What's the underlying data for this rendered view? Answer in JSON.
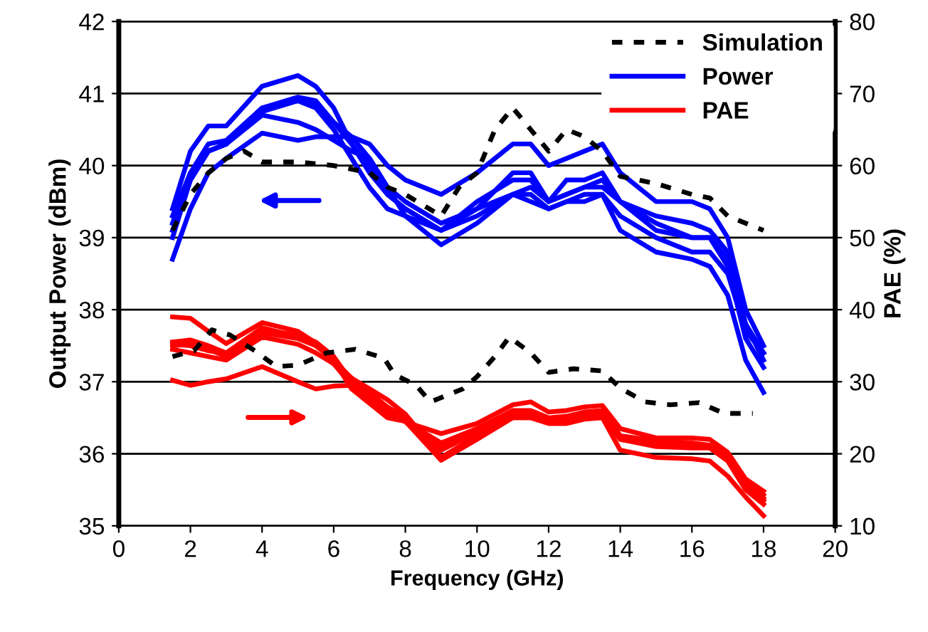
{
  "chart_data": {
    "type": "line",
    "xlabel": "Frequency (GHz)",
    "ylabel": "Output Power (dBm)",
    "y2label": "PAE (%)",
    "x": [
      1.5,
      2,
      2.5,
      3,
      4,
      5,
      5.5,
      6,
      6.5,
      7,
      7.5,
      8,
      9,
      10,
      11,
      11.5,
      12,
      12.5,
      13,
      13.5,
      14,
      15,
      16,
      16.5,
      17,
      17.5,
      18
    ],
    "xlim": [
      0,
      20
    ],
    "xticks": [
      0,
      2,
      4,
      6,
      8,
      10,
      12,
      14,
      16,
      18,
      20
    ],
    "ylim": [
      35,
      42
    ],
    "yticks": [
      35,
      36,
      37,
      38,
      39,
      40,
      41,
      42
    ],
    "y2lim": [
      10,
      80
    ],
    "y2ticks": [
      10,
      20,
      30,
      40,
      50,
      60,
      70,
      80
    ],
    "grid": "y",
    "legend": "top right",
    "marker": "none",
    "series": [
      {
        "name": "Simulation",
        "color": "#000000",
        "line_style": "dashed",
        "x": [
          1.5,
          2,
          2.5,
          3,
          3.5,
          4,
          5,
          6,
          7,
          7.5,
          8,
          9,
          9.5,
          10,
          10.5,
          11,
          11.5,
          12,
          12.5,
          13,
          13.5,
          14,
          15,
          16,
          16.5,
          17,
          18
        ],
        "values": [
          39.1,
          39.6,
          39.9,
          40.1,
          40.2,
          40.05,
          40.05,
          40.0,
          39.9,
          39.7,
          39.6,
          39.3,
          39.7,
          39.9,
          40.5,
          40.8,
          40.5,
          40.2,
          40.5,
          40.4,
          40.2,
          39.85,
          39.75,
          39.6,
          39.55,
          39.3,
          39.1
        ]
      },
      {
        "name": "Power",
        "color": "#0000ff",
        "values": [
          39.4,
          40.2,
          40.55,
          40.55,
          41.1,
          41.25,
          41.1,
          40.8,
          40.3,
          39.9,
          39.6,
          39.4,
          39.1,
          39.4,
          39.9,
          39.9,
          39.5,
          39.6,
          39.7,
          39.8,
          39.5,
          39.2,
          39.0,
          39.0,
          38.7,
          37.8,
          37.3
        ]
      },
      {
        "color": "#0000ff",
        "values": [
          39.2,
          39.9,
          40.3,
          40.35,
          40.8,
          40.95,
          40.9,
          40.6,
          40.3,
          40.0,
          39.6,
          39.4,
          39.1,
          39.3,
          39.6,
          39.7,
          39.5,
          39.6,
          39.7,
          39.7,
          39.5,
          39.1,
          39.0,
          39.0,
          38.6,
          37.6,
          37.2
        ]
      },
      {
        "color": "#0000ff",
        "values": [
          39.0,
          39.8,
          40.2,
          40.3,
          40.75,
          40.9,
          40.85,
          40.6,
          40.4,
          40.1,
          39.7,
          39.3,
          39.1,
          39.5,
          39.8,
          39.8,
          39.5,
          39.8,
          39.8,
          39.9,
          39.5,
          39.3,
          39.2,
          39.1,
          38.8,
          37.8,
          37.4
        ]
      },
      {
        "color": "#0000ff",
        "values": [
          39.3,
          39.9,
          40.2,
          40.3,
          40.7,
          40.6,
          40.5,
          40.35,
          40.2,
          40.1,
          39.7,
          39.5,
          39.2,
          39.4,
          39.6,
          39.6,
          39.4,
          39.5,
          39.6,
          39.6,
          39.3,
          39.0,
          38.8,
          38.8,
          38.5,
          37.7,
          37.4
        ]
      },
      {
        "color": "#0000ff",
        "values": [
          38.7,
          39.4,
          39.9,
          40.1,
          40.45,
          40.35,
          40.4,
          40.4,
          40.4,
          40.3,
          40.0,
          39.8,
          39.6,
          39.9,
          40.3,
          40.3,
          40.0,
          40.1,
          40.2,
          40.3,
          39.9,
          39.5,
          39.5,
          39.4,
          39.0,
          38.0,
          37.5
        ]
      },
      {
        "color": "#0000ff",
        "values": [
          39.1,
          39.8,
          40.2,
          40.3,
          40.8,
          40.9,
          40.8,
          40.5,
          40.1,
          39.7,
          39.4,
          39.3,
          38.9,
          39.2,
          39.6,
          39.5,
          39.4,
          39.5,
          39.5,
          39.6,
          39.1,
          38.8,
          38.7,
          38.6,
          38.2,
          37.3,
          36.85
        ]
      },
      {
        "color": "#000000",
        "line_style": "dashed",
        "axis": "y2",
        "x": [
          1.5,
          2.1,
          2.6,
          3.1,
          3.8,
          4.4,
          5.0,
          5.8,
          6.6,
          7.4,
          7.7,
          8.3,
          8.7,
          9.6,
          10.0,
          10.5,
          10.9,
          11.5,
          12.0,
          12.7,
          13.5,
          14.0,
          14.7,
          15.4,
          16.2,
          16.9,
          17.7
        ],
        "values": [
          33.5,
          34.3,
          37.2,
          36.5,
          34.3,
          32.1,
          32.3,
          34,
          34.5,
          33.3,
          31,
          29.5,
          27.2,
          29,
          30.7,
          33.5,
          36.2,
          34,
          31.3,
          31.8,
          31.5,
          29.1,
          27.2,
          26.8,
          27.1,
          25.6,
          25.6
        ]
      },
      {
        "name": "PAE",
        "color": "#ff0000",
        "axis": "y2",
        "values": [
          39,
          38.8,
          37,
          35.3,
          38.2,
          37,
          35.4,
          32.5,
          29.5,
          27.5,
          25.5,
          24.5,
          21.5,
          23.5,
          26,
          26,
          25,
          25.2,
          25.8,
          26,
          22.5,
          21.8,
          21.5,
          21.2,
          19.8,
          16,
          14.3
        ]
      },
      {
        "color": "#ff0000",
        "axis": "y2",
        "values": [
          35.5,
          35.8,
          35,
          34,
          37.2,
          36.5,
          35.5,
          33.5,
          30,
          27.8,
          26,
          25,
          20.5,
          23,
          25.5,
          25.5,
          24.8,
          25,
          25.5,
          25.8,
          22.3,
          21.2,
          21,
          21,
          19.5,
          15.5,
          13.5
        ]
      },
      {
        "color": "#ff0000",
        "axis": "y2",
        "values": [
          35,
          35.2,
          34.5,
          33.5,
          36.8,
          36,
          35,
          33,
          30.5,
          28.5,
          26.5,
          25,
          21,
          23.5,
          25,
          25,
          24.5,
          24.5,
          25,
          25.5,
          22,
          21,
          20.8,
          20.8,
          19,
          15,
          13
        ]
      },
      {
        "color": "#ff0000",
        "axis": "y2",
        "values": [
          34.5,
          34,
          33.5,
          33,
          36.2,
          35.2,
          34,
          32.5,
          30.5,
          29,
          27.5,
          25.5,
          19.5,
          22.5,
          25.2,
          25.2,
          24.6,
          24.8,
          25.2,
          25.8,
          22,
          21.2,
          21.2,
          21.2,
          19.5,
          15.8,
          13.8
        ]
      },
      {
        "color": "#ff0000",
        "axis": "y2",
        "values": [
          30.2,
          29.5,
          30,
          30.4,
          32.1,
          30,
          29,
          29.4,
          29.5,
          28.1,
          26.5,
          24.4,
          22.8,
          24.2,
          26.8,
          27.2,
          25.8,
          26,
          26.5,
          26.7,
          23.5,
          22.2,
          22.2,
          22,
          20.2,
          16.5,
          14.8
        ]
      },
      {
        "color": "#ff0000",
        "axis": "y2",
        "values": [
          35.2,
          35,
          34.3,
          34,
          37.5,
          36.2,
          35,
          33,
          29,
          27,
          25,
          24.5,
          19.1,
          22,
          25,
          25,
          24.2,
          24.2,
          24.8,
          25,
          20.5,
          19.5,
          19.3,
          19,
          16.9,
          14,
          11.4
        ]
      }
    ]
  }
}
